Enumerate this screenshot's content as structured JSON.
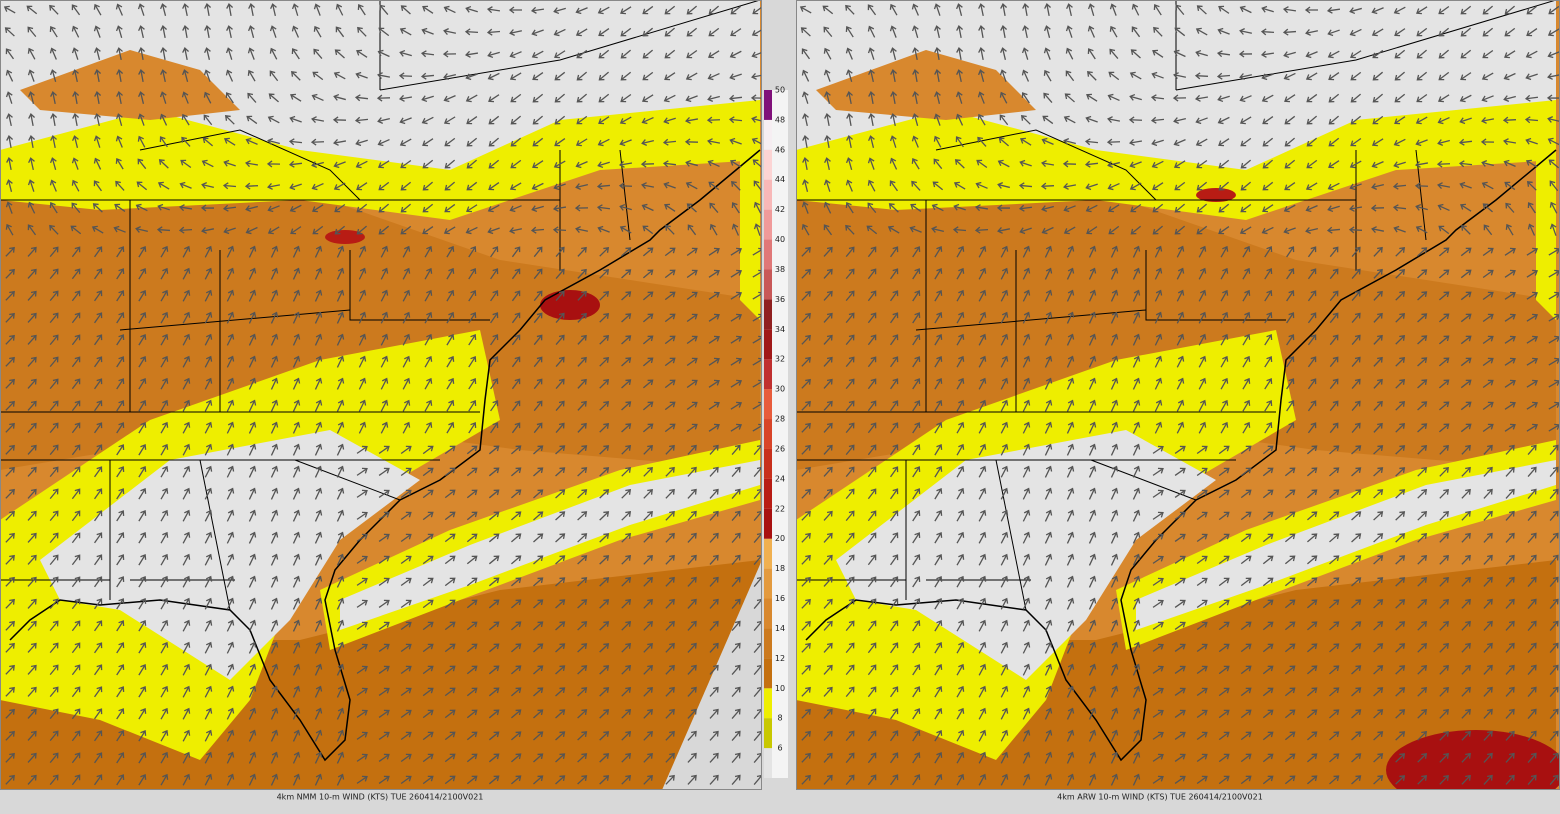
{
  "panels": [
    {
      "caption": "4km NMM 10-m WIND (KTS) TUE 260414/2100V021"
    },
    {
      "caption": "4km ARW 10-m WIND (KTS) TUE 260414/2100V021"
    }
  ],
  "colorbar": {
    "labels": [
      6,
      8,
      10,
      12,
      14,
      16,
      18,
      20,
      22,
      24,
      26,
      28,
      30,
      32,
      34,
      36,
      38,
      40,
      42,
      44,
      46,
      48,
      50
    ],
    "colors": [
      "#e4e4e4",
      "#c8c800",
      "#eeee00",
      "#c4700f",
      "#cc7a1e",
      "#d8882e",
      "#e39a3e",
      "#f0b050",
      "#a81010",
      "#b81c14",
      "#c8301c",
      "#d84428",
      "#e85c3c",
      "#c03030",
      "#a01818",
      "#902020",
      "#c85858",
      "#e07878",
      "#f09a9a",
      "#f8b8b8",
      "#fcd4d4",
      "#f6eef2",
      "#80107a"
    ]
  }
}
